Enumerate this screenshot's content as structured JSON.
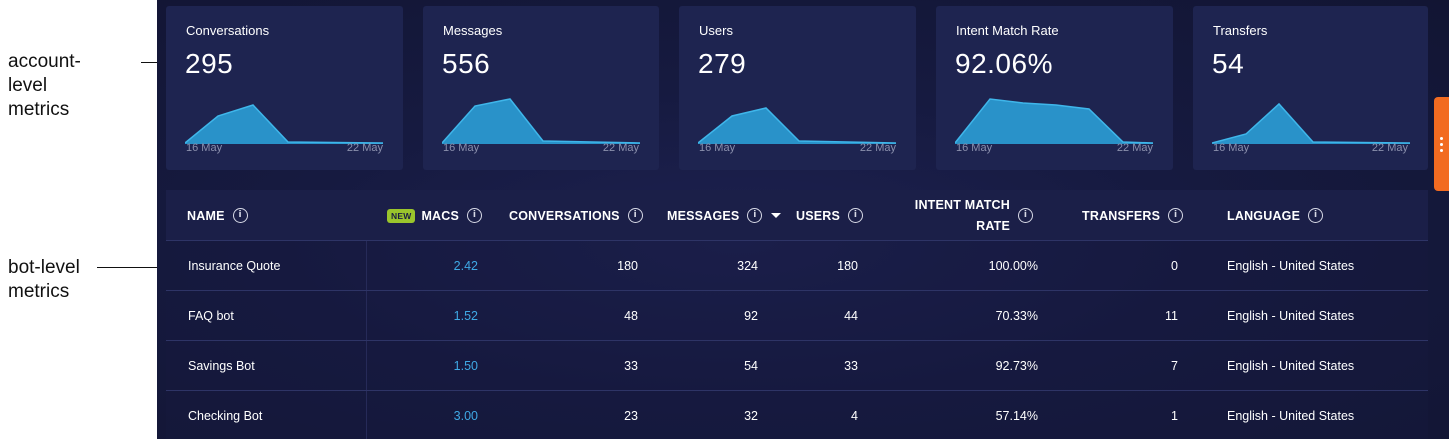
{
  "annotations": {
    "account_level": "account-level metrics",
    "bot_level": "bot-level metrics"
  },
  "cards": [
    {
      "title": "Conversations",
      "value": "295",
      "date_start": "16 May",
      "date_end": "22 May"
    },
    {
      "title": "Messages",
      "value": "556",
      "date_start": "16 May",
      "date_end": "22 May"
    },
    {
      "title": "Users",
      "value": "279",
      "date_start": "16 May",
      "date_end": "22 May"
    },
    {
      "title": "Intent Match Rate",
      "value": "92.06%",
      "date_start": "16 May",
      "date_end": "22 May"
    },
    {
      "title": "Transfers",
      "value": "54",
      "date_start": "16 May",
      "date_end": "22 May"
    }
  ],
  "table": {
    "headers": {
      "name": "NAME",
      "new_badge": "NEW",
      "macs": "MACS",
      "conversations": "CONVERSATIONS",
      "messages": "MESSAGES",
      "users": "USERS",
      "intent_match_rate": "INTENT MATCH RATE",
      "transfers": "TRANSFERS",
      "language": "LANGUAGE"
    },
    "info_glyph": "i",
    "rows": [
      {
        "name": "Insurance Quote",
        "macs": "2.42",
        "conversations": "180",
        "messages": "324",
        "users": "180",
        "intent_match_rate": "100.00%",
        "transfers": "0",
        "language": "English - United States"
      },
      {
        "name": "FAQ bot",
        "macs": "1.52",
        "conversations": "48",
        "messages": "92",
        "users": "44",
        "intent_match_rate": "70.33%",
        "transfers": "11",
        "language": "English - United States"
      },
      {
        "name": "Savings Bot",
        "macs": "1.50",
        "conversations": "33",
        "messages": "54",
        "users": "33",
        "intent_match_rate": "92.73%",
        "transfers": "7",
        "language": "English - United States"
      },
      {
        "name": "Checking Bot",
        "macs": "3.00",
        "conversations": "23",
        "messages": "32",
        "users": "4",
        "intent_match_rate": "57.14%",
        "transfers": "1",
        "language": "English - United States"
      }
    ]
  },
  "colors": {
    "accent_orange": "#f26b21",
    "link_blue": "#3fa9e5",
    "sparkline": "#2a9fd6",
    "new_badge": "#9ac52c"
  }
}
